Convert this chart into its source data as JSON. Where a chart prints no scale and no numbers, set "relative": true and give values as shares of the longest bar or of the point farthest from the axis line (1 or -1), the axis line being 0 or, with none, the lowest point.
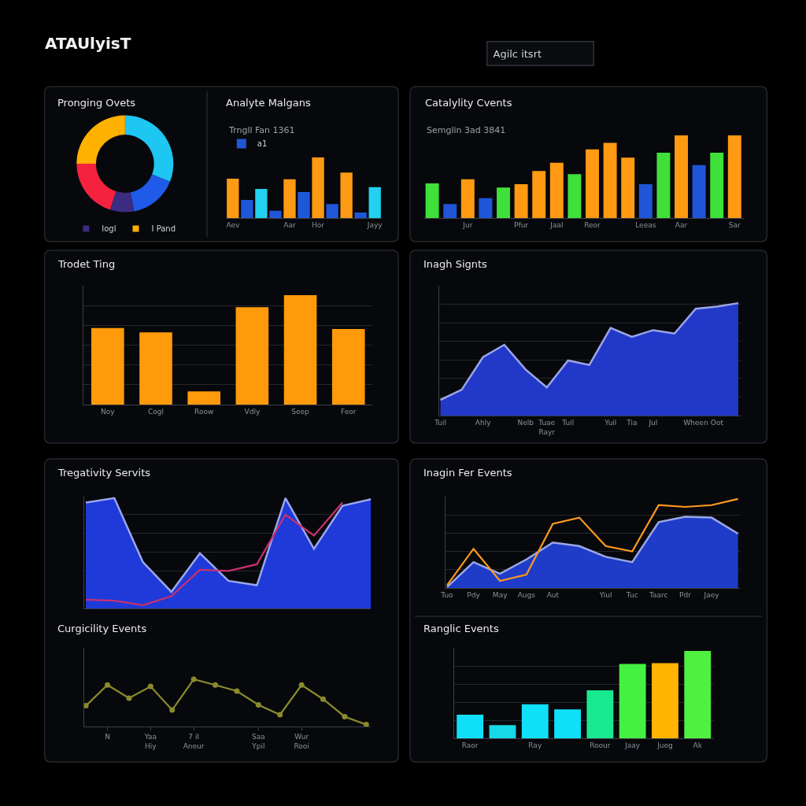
{
  "chart_data": [
    {
      "type": "other",
      "title": "ATAUlyisT",
      "annotations": [
        "Agilc itsrt"
      ]
    },
    {
      "type": "donut",
      "title": "Pronging Ovets",
      "categories": [
        null,
        null,
        "Iogl",
        null,
        "I Pand"
      ],
      "values": [
        31,
        16,
        8,
        20,
        25
      ],
      "colors": [
        "#1ec6f2",
        "#1f5be8",
        "#3b2c82",
        "#f4223f",
        "#ffb100"
      ],
      "legend": "bottom"
    },
    {
      "type": "bar",
      "title": "Analyte Malgans",
      "subtitle": "Trngll Fan 1361",
      "relative": true,
      "categories": [
        "Aev",
        null,
        null,
        null,
        "Aar",
        null,
        "Hor",
        null,
        null,
        null,
        "Jayy"
      ],
      "series": [
        {
          "color": "#ff9a14",
          "values": [
            0.65,
            null,
            null,
            null,
            0.64,
            null,
            1.0,
            null,
            0.75,
            null,
            null
          ]
        },
        {
          "name": "a1",
          "color": "#1f57d8",
          "values": [
            null,
            0.3,
            null,
            0.12,
            null,
            0.43,
            null,
            0.23,
            null,
            0.09,
            null
          ]
        },
        {
          "color": "#22d0f0",
          "values": [
            null,
            null,
            0.48,
            null,
            null,
            null,
            null,
            null,
            null,
            null,
            0.51
          ]
        }
      ],
      "legend": "top left"
    },
    {
      "type": "bar",
      "title": "Catalylity Cvents",
      "subtitle": "Semglin 3ad 3841",
      "relative": true,
      "categories": [
        null,
        null,
        "Jur",
        null,
        null,
        "Pfur",
        null,
        "Jaal",
        null,
        "Reor",
        null,
        null,
        "Leeas",
        null,
        "Aar",
        null,
        null,
        "Sar"
      ],
      "values": [
        0.42,
        0.17,
        0.47,
        0.24,
        0.37,
        0.41,
        0.57,
        0.67,
        0.53,
        0.83,
        0.91,
        0.73,
        0.41,
        0.79,
        1.0,
        0.64,
        0.79,
        1.0
      ],
      "colors": [
        "#3fe03a",
        "#1f55d6",
        "#ff9a12",
        "#1f55d6",
        "#3fe03a",
        "#ff9a12",
        "#ff9a12",
        "#ff9a12",
        "#3fe03a",
        "#ff9a12",
        "#ff9a12",
        "#ff9a12",
        "#1f55d6",
        "#3fe03a",
        "#ff9a12",
        "#1f55d6",
        "#3fe03a",
        "#ff9a12"
      ]
    },
    {
      "type": "bar",
      "title": "Trodet Ting",
      "relative": true,
      "categories": [
        "Noy",
        "Cogl",
        "Roow",
        "Vdly",
        "Seep",
        "Feor"
      ],
      "values": [
        0.7,
        0.66,
        0.12,
        0.89,
        1.0,
        0.69
      ],
      "color": "#ff9a0a",
      "grid": "y"
    },
    {
      "type": "area",
      "title": "Inagh Signts",
      "relative": true,
      "categories": [
        "Tuil",
        null,
        "Ahly",
        null,
        "Nelb",
        "Tuae\nRayr",
        "Tuil",
        null,
        "Yuil",
        "Tia",
        "Jul",
        null,
        "Wheen",
        "Oot",
        null
      ],
      "values": [
        0.14,
        0.23,
        0.52,
        0.63,
        0.41,
        0.25,
        0.49,
        0.45,
        0.78,
        0.7,
        0.76,
        0.73,
        0.95,
        0.97,
        1.0
      ],
      "color": "#2238c8",
      "grid": "y"
    },
    {
      "type": "area",
      "title": "Tregativity Servits",
      "relative": true,
      "categories": [
        null,
        null,
        null,
        null,
        null,
        null,
        null,
        null,
        null,
        null,
        null
      ],
      "series": [
        {
          "type": "area",
          "color": "#1f3ad8",
          "values": [
            0.96,
            1.0,
            0.42,
            0.15,
            0.5,
            0.25,
            0.21,
            1.0,
            0.54,
            0.93,
            0.99
          ]
        },
        {
          "type": "line",
          "color": "#c8306e",
          "values": [
            0.08,
            0.07,
            0.03,
            0.11,
            0.35,
            0.34,
            0.4,
            0.85,
            0.66,
            0.96,
            null
          ]
        }
      ],
      "grid": "y"
    },
    {
      "type": "area",
      "title": "Inagin Fer Events",
      "relative": true,
      "categories": [
        "Tuo",
        "Pdy",
        "May",
        "Augs",
        "Aut",
        null,
        "Yiul",
        "Tuc",
        "Taarc",
        "Pdr",
        "Jaey",
        null
      ],
      "series": [
        {
          "type": "area",
          "color": "#1f3cc8",
          "values": [
            0.01,
            0.29,
            0.16,
            0.32,
            0.51,
            0.47,
            0.35,
            0.29,
            0.74,
            0.8,
            0.79,
            0.61
          ]
        },
        {
          "type": "line",
          "color": "#ff9a1e",
          "values": [
            0.03,
            0.44,
            0.08,
            0.15,
            0.72,
            0.79,
            0.47,
            0.41,
            0.93,
            0.91,
            0.93,
            1.0
          ]
        }
      ],
      "grid": "y"
    },
    {
      "type": "line",
      "title": "Curgicility Events",
      "relative": true,
      "categories": [
        null,
        "N",
        null,
        "Yaa\nHiy",
        null,
        "7 il\nAneur",
        null,
        null,
        "Saa\nYpil",
        null,
        "Wur\nRooi",
        null,
        null,
        null
      ],
      "values": [
        0.44,
        0.88,
        0.6,
        0.85,
        0.35,
        1.0,
        0.88,
        0.75,
        0.46,
        0.25,
        0.88,
        0.58,
        0.21,
        0.04
      ],
      "color": "#8a8a2c",
      "marker": "circle"
    },
    {
      "type": "bar",
      "title": "Ranglic Events",
      "relative": true,
      "categories": [
        "Raor",
        null,
        "Ray",
        null,
        "Roour",
        "Jaay",
        "Jueg",
        "Ak"
      ],
      "values": [
        0.27,
        0.15,
        0.39,
        0.33,
        0.55,
        0.85,
        0.86,
        1.0
      ],
      "colors": [
        "#0fe0f8",
        "#16d8e8",
        "#0fe0f8",
        "#0fe0f8",
        "#18e890",
        "#44f040",
        "#ffb400",
        "#50f040"
      ],
      "grid": "y"
    }
  ]
}
